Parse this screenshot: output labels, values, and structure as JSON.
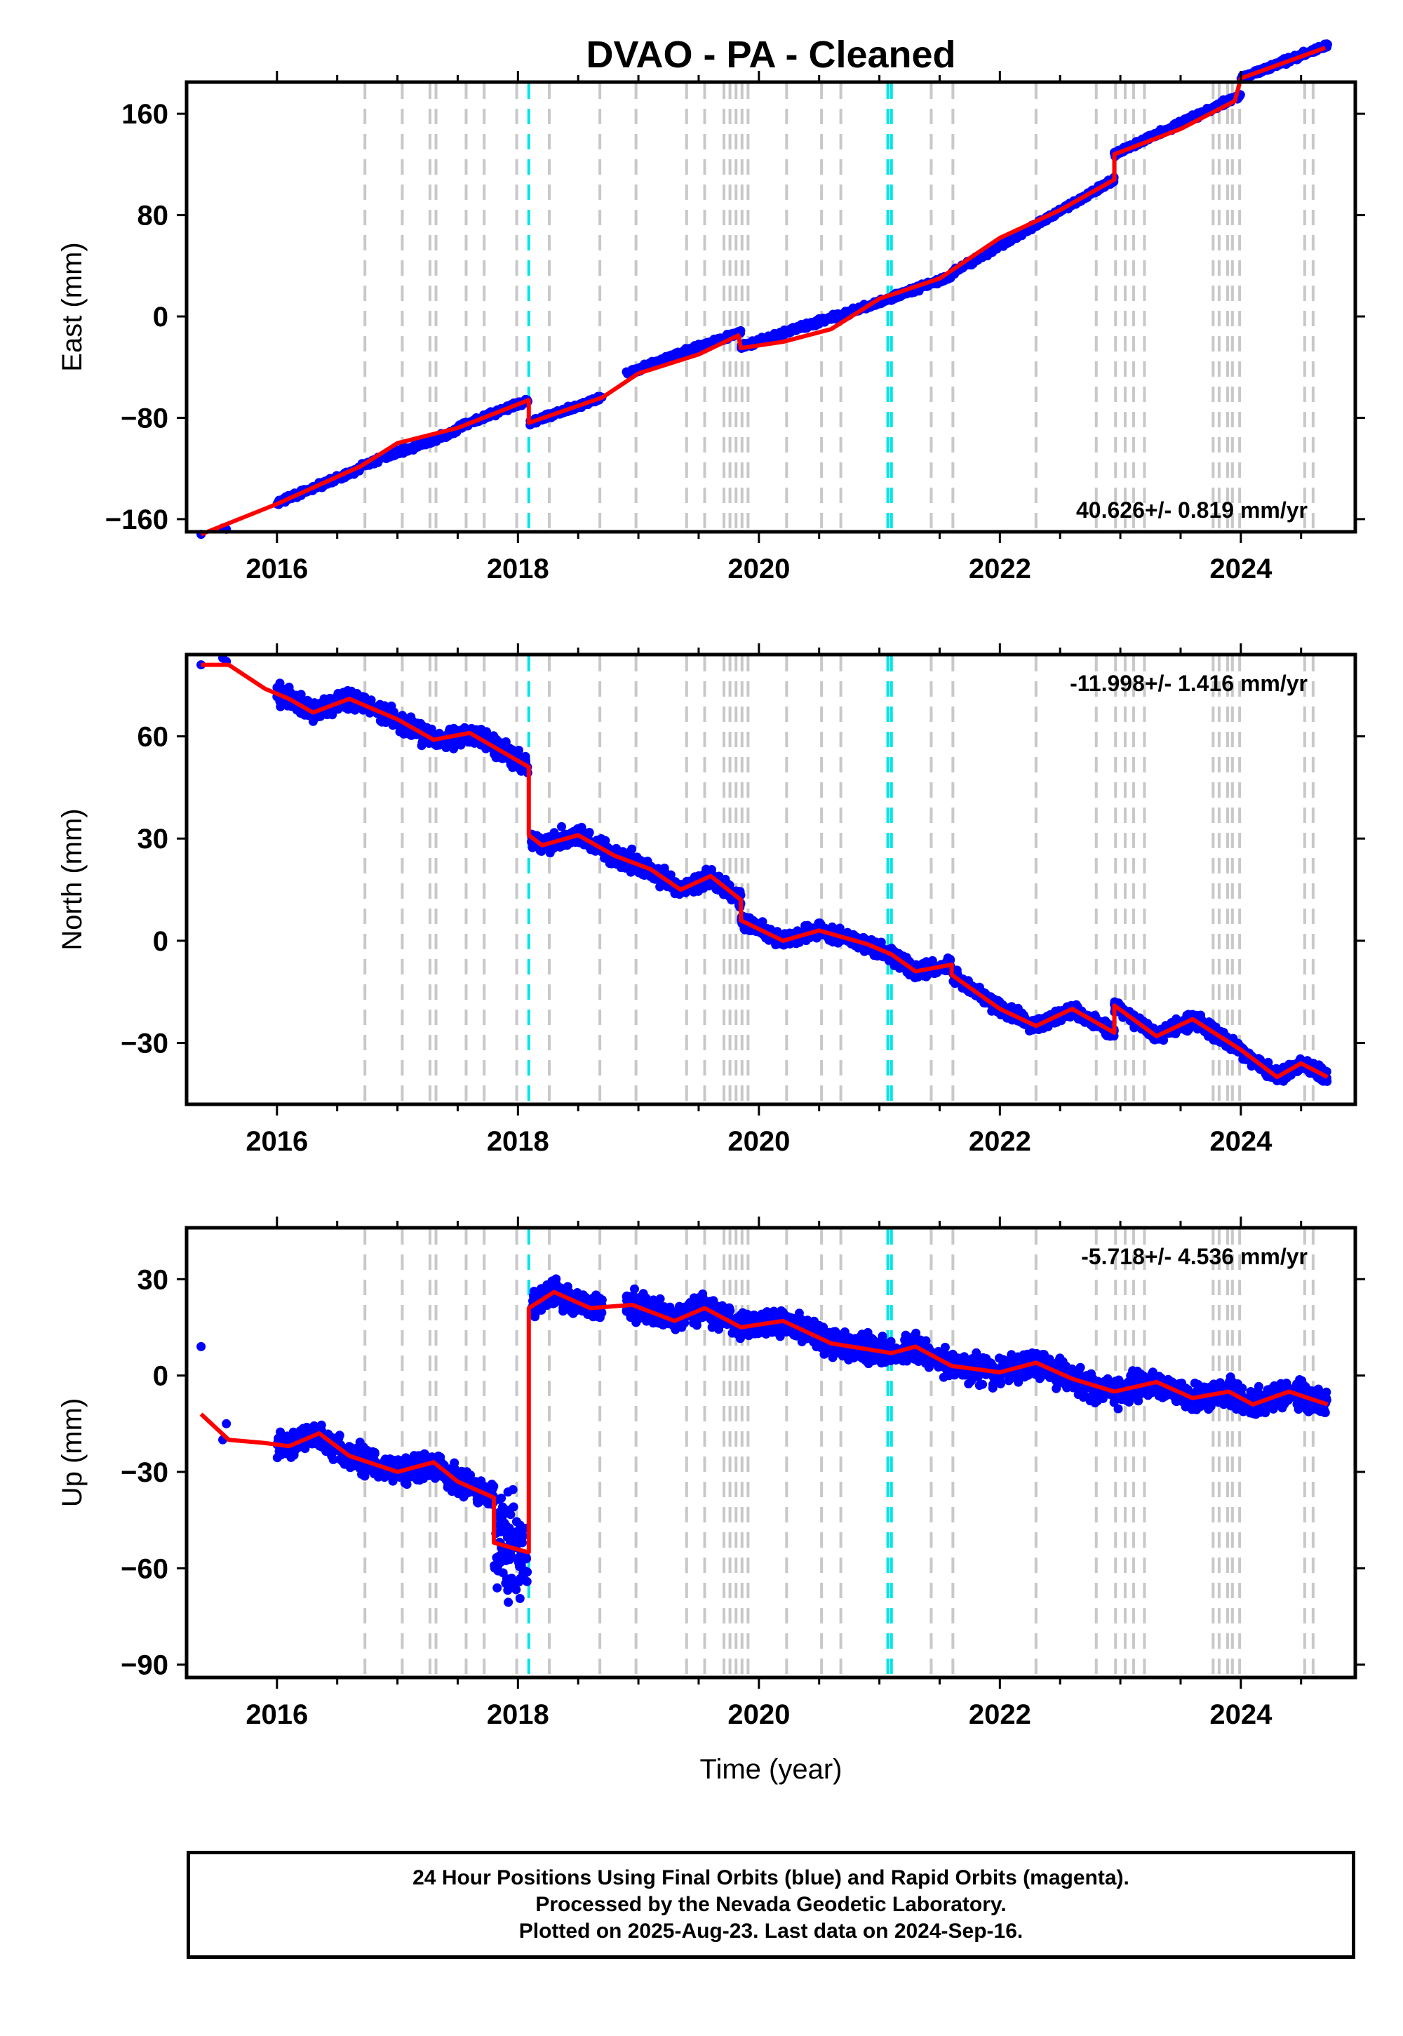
{
  "title": "DVAO  - PA - Cleaned",
  "xlabel": "Time (year)",
  "footer": {
    "line1": "24 Hour Positions Using Final Orbits (blue) and Rapid Orbits (magenta).",
    "line2": "Processed by the Nevada Geodetic Laboratory.",
    "line3": "Plotted on 2025-Aug-23. Last data on 2024-Sep-16."
  },
  "colors": {
    "points": "#0000ff",
    "model": "#ff0000",
    "event_lines": "#c8c8c8",
    "highlight_lines": "#00e5e5"
  },
  "chart_data": [
    {
      "type": "scatter",
      "panel": "east",
      "ylabel": "East (mm)",
      "rate_text": "40.626+/- 0.819 mm/yr",
      "rate_position": "bottom-right",
      "xlim": [
        2015.25,
        2024.95
      ],
      "ylim": [
        -170,
        185
      ],
      "yticks": [
        -160,
        -80,
        0,
        80,
        160
      ],
      "xticks": [
        2016,
        2018,
        2020,
        2022,
        2024
      ],
      "model": [
        [
          2015.37,
          -172
        ],
        [
          2016.0,
          -148
        ],
        [
          2016.7,
          -118
        ],
        [
          2017.0,
          -100
        ],
        [
          2017.5,
          -88
        ],
        [
          2018.09,
          -66
        ],
        [
          2018.09,
          -84
        ],
        [
          2018.7,
          -64
        ],
        [
          2019.0,
          -45
        ],
        [
          2019.5,
          -30
        ],
        [
          2019.83,
          -15
        ],
        [
          2019.85,
          -25
        ],
        [
          2020.2,
          -20
        ],
        [
          2020.6,
          -10
        ],
        [
          2021.0,
          14
        ],
        [
          2021.5,
          30
        ],
        [
          2022.0,
          62
        ],
        [
          2022.5,
          84
        ],
        [
          2022.95,
          108
        ],
        [
          2022.95,
          128
        ],
        [
          2023.5,
          148
        ],
        [
          2023.95,
          170
        ],
        [
          2024.0,
          188
        ],
        [
          2024.7,
          212
        ]
      ],
      "density": [
        [
          2016.0,
          2016.7,
          -147,
          -120
        ],
        [
          2016.7,
          2017.5,
          -118,
          -90
        ],
        [
          2017.5,
          2018.09,
          -88,
          -66
        ],
        [
          2018.1,
          2018.7,
          -84,
          -64
        ],
        [
          2018.9,
          2019.85,
          -45,
          -12
        ],
        [
          2019.85,
          2020.9,
          -24,
          8
        ],
        [
          2020.9,
          2021.6,
          8,
          32
        ],
        [
          2021.6,
          2022.95,
          34,
          108
        ],
        [
          2022.95,
          2024.0,
          128,
          175
        ],
        [
          2024.0,
          2024.72,
          188,
          214
        ]
      ],
      "scatter_mm": 3,
      "isolated": [
        [
          2015.37,
          -172
        ],
        [
          2015.55,
          -167
        ],
        [
          2015.58,
          -168
        ]
      ]
    },
    {
      "type": "scatter",
      "panel": "north",
      "ylabel": "North (mm)",
      "rate_text": "-11.998+/- 1.416 mm/yr",
      "rate_position": "top-right",
      "xlim": [
        2015.25,
        2024.95
      ],
      "ylim": [
        -48,
        84
      ],
      "yticks": [
        -30,
        0,
        30,
        60
      ],
      "xticks": [
        2016,
        2018,
        2020,
        2022,
        2024
      ],
      "model": [
        [
          2015.37,
          81
        ],
        [
          2015.6,
          81
        ],
        [
          2015.9,
          74
        ],
        [
          2016.1,
          71
        ],
        [
          2016.3,
          67
        ],
        [
          2016.6,
          71
        ],
        [
          2017.0,
          65
        ],
        [
          2017.3,
          59
        ],
        [
          2017.6,
          61
        ],
        [
          2018.09,
          51
        ],
        [
          2018.09,
          31
        ],
        [
          2018.2,
          28
        ],
        [
          2018.5,
          31
        ],
        [
          2018.8,
          25
        ],
        [
          2019.1,
          21
        ],
        [
          2019.35,
          15
        ],
        [
          2019.6,
          19
        ],
        [
          2019.85,
          12
        ],
        [
          2019.85,
          6
        ],
        [
          2020.2,
          0
        ],
        [
          2020.5,
          3
        ],
        [
          2020.9,
          -1
        ],
        [
          2021.1,
          -4
        ],
        [
          2021.3,
          -9
        ],
        [
          2021.6,
          -7
        ],
        [
          2021.6,
          -10
        ],
        [
          2022.0,
          -20
        ],
        [
          2022.3,
          -25
        ],
        [
          2022.6,
          -20
        ],
        [
          2022.95,
          -27
        ],
        [
          2022.95,
          -19
        ],
        [
          2023.3,
          -28
        ],
        [
          2023.6,
          -23
        ],
        [
          2024.0,
          -32
        ],
        [
          2024.3,
          -40
        ],
        [
          2024.5,
          -36
        ],
        [
          2024.72,
          -40
        ]
      ],
      "density": [
        [
          2016.0,
          2018.09,
          -4,
          4
        ],
        [
          2018.1,
          2019.85,
          -4,
          4
        ],
        [
          2019.85,
          2022.95,
          -3,
          3
        ],
        [
          2022.95,
          2024.72,
          -3,
          3
        ]
      ],
      "scatter_mm": 2.5,
      "isolated": [
        [
          2015.37,
          81
        ],
        [
          2015.55,
          83
        ],
        [
          2015.58,
          82
        ]
      ]
    },
    {
      "type": "scatter",
      "panel": "up",
      "ylabel": "Up (mm)",
      "rate_text": "-5.718+/- 4.536 mm/yr",
      "rate_position": "top-right",
      "xlim": [
        2015.25,
        2024.95
      ],
      "ylim": [
        -94,
        46
      ],
      "yticks": [
        -90,
        -60,
        -30,
        0,
        30
      ],
      "xticks": [
        2016,
        2018,
        2020,
        2022,
        2024
      ],
      "model": [
        [
          2015.37,
          -12
        ],
        [
          2015.6,
          -20
        ],
        [
          2015.9,
          -21
        ],
        [
          2016.1,
          -22
        ],
        [
          2016.35,
          -18
        ],
        [
          2016.6,
          -25
        ],
        [
          2017.0,
          -30
        ],
        [
          2017.3,
          -27
        ],
        [
          2017.5,
          -33
        ],
        [
          2017.8,
          -38
        ],
        [
          2017.8,
          -52
        ],
        [
          2018.08,
          -55
        ],
        [
          2018.09,
          -55
        ],
        [
          2018.09,
          21
        ],
        [
          2018.3,
          26
        ],
        [
          2018.6,
          21
        ],
        [
          2018.95,
          22
        ],
        [
          2019.3,
          17
        ],
        [
          2019.55,
          21
        ],
        [
          2019.85,
          15
        ],
        [
          2020.2,
          17
        ],
        [
          2020.6,
          10
        ],
        [
          2021.1,
          7
        ],
        [
          2021.3,
          9
        ],
        [
          2021.6,
          3
        ],
        [
          2022.0,
          1
        ],
        [
          2022.3,
          4
        ],
        [
          2022.6,
          -1
        ],
        [
          2022.95,
          -5
        ],
        [
          2023.3,
          -2
        ],
        [
          2023.6,
          -7
        ],
        [
          2023.9,
          -5
        ],
        [
          2024.1,
          -9
        ],
        [
          2024.4,
          -5
        ],
        [
          2024.72,
          -9
        ]
      ],
      "density": [
        [
          2016.0,
          2017.8,
          -6,
          6
        ],
        [
          2017.8,
          2018.08,
          -22,
          22
        ],
        [
          2018.12,
          2018.7,
          -6,
          6
        ],
        [
          2018.9,
          2024.72,
          -6,
          6
        ]
      ],
      "scatter_mm": 6,
      "isolated": [
        [
          2015.37,
          9
        ],
        [
          2015.55,
          -20
        ],
        [
          2015.58,
          -15
        ]
      ]
    }
  ],
  "event_lines_gray": [
    2016.73,
    2017.04,
    2017.27,
    2017.32,
    2017.57,
    2017.72,
    2017.99,
    2018.26,
    2018.68,
    2018.98,
    2019.4,
    2019.55,
    2019.71,
    2019.76,
    2019.81,
    2019.86,
    2019.91,
    2020.23,
    2020.52,
    2020.68,
    2021.43,
    2021.61,
    2022.3,
    2022.8,
    2022.96,
    2023.04,
    2023.11,
    2023.2,
    2023.77,
    2023.82,
    2023.89,
    2023.93,
    2023.99,
    2024.53,
    2024.6
  ],
  "event_lines_cyan": [
    2018.09,
    2021.07,
    2021.1
  ]
}
